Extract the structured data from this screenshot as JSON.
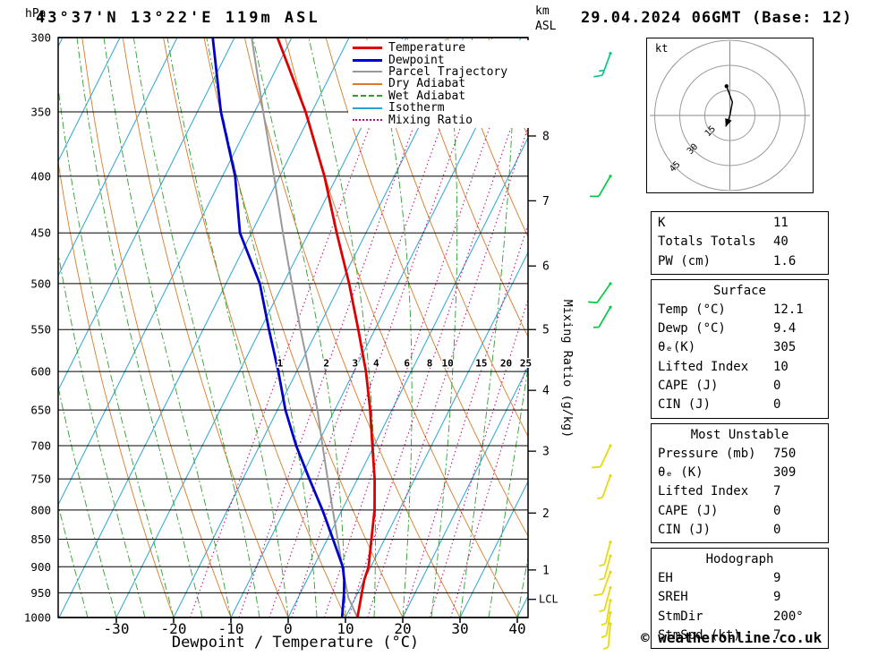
{
  "header": {
    "station": "43°37'N 13°22'E 119m ASL",
    "datetime": "29.04.2024 06GMT (Base: 12)"
  },
  "axes": {
    "pressure_unit": "hPa",
    "pressure_levels": [
      300,
      350,
      400,
      450,
      500,
      550,
      600,
      650,
      700,
      750,
      800,
      850,
      900,
      950,
      1000
    ],
    "temp_ticks": [
      -30,
      -20,
      -10,
      0,
      10,
      20,
      30,
      40
    ],
    "xlabel": "Dewpoint / Temperature (°C)",
    "right_axis": {
      "line1": "km",
      "line2": "ASL"
    },
    "mixing_ratio_label": "Mixing Ratio (g/kg)",
    "km_ticks": [
      {
        "label": "8",
        "p": 368
      },
      {
        "label": "7",
        "p": 421
      },
      {
        "label": "6",
        "p": 482
      },
      {
        "label": "5",
        "p": 550
      },
      {
        "label": "4",
        "p": 624
      },
      {
        "label": "3",
        "p": 708
      },
      {
        "label": "2",
        "p": 805
      },
      {
        "label": "1",
        "p": 906
      }
    ],
    "lcl_tick": {
      "label": "LCL",
      "p": 963
    }
  },
  "legend": {
    "items": [
      {
        "label": "Temperature",
        "color": "#dd0000",
        "line_style": "solid",
        "thickness": 3
      },
      {
        "label": "Dewpoint",
        "color": "#0000cc",
        "line_style": "solid",
        "thickness": 3
      },
      {
        "label": "Parcel Trajectory",
        "color": "#999999",
        "line_style": "solid",
        "thickness": 2
      },
      {
        "label": "Dry Adiabat",
        "color": "#d97b28",
        "line_style": "solid",
        "thickness": 2
      },
      {
        "label": "Wet Adiabat",
        "color": "#2f9e2f",
        "line_style": "dashed",
        "thickness": 2
      },
      {
        "label": "Isotherm",
        "color": "#29a3d4",
        "line_style": "solid",
        "thickness": 2
      },
      {
        "label": "Mixing Ratio",
        "color": "#c4007a",
        "line_style": "dotted",
        "thickness": 2
      }
    ]
  },
  "chart_data": {
    "type": "line",
    "subtype": "skew-t-log-p",
    "title": "43°37'N 13°22'E 119m ASL",
    "xlabel": "Dewpoint / Temperature (°C)",
    "ylabel": "hPa",
    "x_ticks_c": [
      -30,
      -20,
      -10,
      0,
      10,
      20,
      30,
      40
    ],
    "y_range_hpa": [
      1000,
      300
    ],
    "grid": true,
    "series": [
      {
        "name": "Temperature",
        "color": "#dd0000",
        "points_p_t": [
          [
            1000,
            12.1
          ],
          [
            950,
            10.7
          ],
          [
            925,
            10.0
          ],
          [
            900,
            9.6
          ],
          [
            850,
            7.7
          ],
          [
            800,
            5.7
          ],
          [
            750,
            3.0
          ],
          [
            700,
            -0.3
          ],
          [
            650,
            -3.8
          ],
          [
            600,
            -7.9
          ],
          [
            550,
            -12.9
          ],
          [
            500,
            -18.5
          ],
          [
            450,
            -25.1
          ],
          [
            400,
            -32.2
          ],
          [
            350,
            -41.1
          ],
          [
            300,
            -52.5
          ]
        ]
      },
      {
        "name": "Dewpoint",
        "color": "#0000cc",
        "points_p_t": [
          [
            1000,
            9.4
          ],
          [
            950,
            7.6
          ],
          [
            925,
            6.5
          ],
          [
            900,
            5.1
          ],
          [
            850,
            1.0
          ],
          [
            800,
            -3.4
          ],
          [
            750,
            -8.4
          ],
          [
            700,
            -13.6
          ],
          [
            650,
            -18.6
          ],
          [
            600,
            -23.2
          ],
          [
            550,
            -28.5
          ],
          [
            500,
            -34.1
          ],
          [
            450,
            -42.0
          ],
          [
            400,
            -47.8
          ],
          [
            350,
            -55.9
          ],
          [
            300,
            -63.8
          ]
        ]
      },
      {
        "name": "Parcel Trajectory",
        "color": "#999999",
        "points_p_t": [
          [
            1000,
            12.1
          ],
          [
            960,
            8.8
          ],
          [
            900,
            5.0
          ],
          [
            850,
            1.8
          ],
          [
            800,
            -1.6
          ],
          [
            750,
            -5.2
          ],
          [
            700,
            -9.0
          ],
          [
            650,
            -13.0
          ],
          [
            600,
            -17.8
          ],
          [
            550,
            -23.0
          ],
          [
            500,
            -28.5
          ],
          [
            450,
            -34.5
          ],
          [
            400,
            -41.0
          ],
          [
            350,
            -48.5
          ],
          [
            300,
            -57.0
          ]
        ]
      }
    ],
    "mixing_ratio_lines_gkg": [
      1,
      2,
      3,
      4,
      6,
      8,
      10,
      15,
      20,
      25
    ],
    "isotherm_step_c": 10,
    "dry_adiabat_step_c": 10,
    "wet_adiabat_step_c": 5
  },
  "wind_barbs": [
    {
      "p_hpa": 310,
      "dir_deg": 200,
      "speed_kt": 15,
      "color": "#00cc88"
    },
    {
      "p_hpa": 400,
      "dir_deg": 210,
      "speed_kt": 10,
      "color": "#00cc44"
    },
    {
      "p_hpa": 500,
      "dir_deg": 215,
      "speed_kt": 10,
      "color": "#00cc44"
    },
    {
      "p_hpa": 525,
      "dir_deg": 210,
      "speed_kt": 5,
      "color": "#00cc44"
    },
    {
      "p_hpa": 700,
      "dir_deg": 205,
      "speed_kt": 10,
      "color": "#e8d800"
    },
    {
      "p_hpa": 745,
      "dir_deg": 200,
      "speed_kt": 5,
      "color": "#e8d800"
    },
    {
      "p_hpa": 855,
      "dir_deg": 195,
      "speed_kt": 5,
      "color": "#e8d800"
    },
    {
      "p_hpa": 880,
      "dir_deg": 195,
      "speed_kt": 5,
      "color": "#e8d800"
    },
    {
      "p_hpa": 910,
      "dir_deg": 200,
      "speed_kt": 10,
      "color": "#e8d800"
    },
    {
      "p_hpa": 940,
      "dir_deg": 195,
      "speed_kt": 5,
      "color": "#e8d800"
    },
    {
      "p_hpa": 965,
      "dir_deg": 190,
      "speed_kt": 5,
      "color": "#e8d800"
    },
    {
      "p_hpa": 990,
      "dir_deg": 190,
      "speed_kt": 5,
      "color": "#e8d800"
    },
    {
      "p_hpa": 1013,
      "dir_deg": 185,
      "speed_kt": 7,
      "color": "#e8d800"
    }
  ],
  "hodograph": {
    "unit": "kt",
    "rings_kt": [
      15,
      30,
      45
    ],
    "ring_labels": [
      "15",
      "30",
      "45"
    ],
    "trace_uv_kt": [
      [
        0,
        0
      ],
      [
        1.5,
        8
      ],
      [
        -2,
        17.5
      ]
    ],
    "storm_motion": {
      "dir_deg": 200,
      "speed_kt": 7
    }
  },
  "indices": {
    "boxes": [
      {
        "title": null,
        "rows": [
          [
            "K",
            "11"
          ],
          [
            "Totals Totals",
            "40"
          ],
          [
            "PW (cm)",
            "1.6"
          ]
        ]
      },
      {
        "title": "Surface",
        "rows": [
          [
            "Temp (°C)",
            "12.1"
          ],
          [
            "Dewp (°C)",
            "9.4"
          ],
          [
            "θₑ(K)",
            "305"
          ],
          [
            "Lifted Index",
            "10"
          ],
          [
            "CAPE (J)",
            "0"
          ],
          [
            "CIN (J)",
            "0"
          ]
        ]
      },
      {
        "title": "Most Unstable",
        "rows": [
          [
            "Pressure (mb)",
            "750"
          ],
          [
            "θₑ (K)",
            "309"
          ],
          [
            "Lifted Index",
            "7"
          ],
          [
            "CAPE (J)",
            "0"
          ],
          [
            "CIN (J)",
            "0"
          ]
        ]
      },
      {
        "title": "Hodograph",
        "rows": [
          [
            "EH",
            "9"
          ],
          [
            "SREH",
            "9"
          ],
          [
            "StmDir",
            "200°"
          ],
          [
            "StmSpd (kt)",
            "7"
          ]
        ]
      }
    ]
  },
  "footer": {
    "copyright": "© weatheronline.co.uk"
  }
}
